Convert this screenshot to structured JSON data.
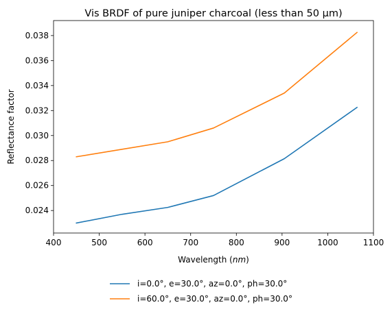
{
  "chart_data": {
    "type": "line",
    "title": "Vis BRDF of pure juniper charcoal (less than 50 µm)",
    "xlabel_text": "Wavelength (",
    "xlabel_unit": "nm",
    "xlabel_close": ")",
    "ylabel": "Reflectance factor",
    "xlim": [
      400,
      1100
    ],
    "ylim": [
      0.0222,
      0.0392
    ],
    "xticks": [
      400,
      500,
      600,
      700,
      800,
      900,
      1000,
      1100
    ],
    "yticks": [
      0.024,
      0.026,
      0.028,
      0.03,
      0.032,
      0.034,
      0.036,
      0.038
    ],
    "ytick_labels": [
      "0.024",
      "0.026",
      "0.028",
      "0.030",
      "0.032",
      "0.034",
      "0.036",
      "0.038"
    ],
    "legend_position": "below",
    "grid": false,
    "series": [
      {
        "name": "i=0.0°, e=30.0°, az=0.0°, ph=30.0°",
        "color": "#1f77b4",
        "x": [
          450,
          550,
          650,
          750,
          905,
          1064
        ],
        "y": [
          0.023,
          0.0237,
          0.02425,
          0.0252,
          0.02815,
          0.03225
        ]
      },
      {
        "name": "i=60.0°, e=30.0°, az=0.0°, ph=30.0°",
        "color": "#ff7f0e",
        "x": [
          450,
          550,
          650,
          750,
          905,
          1064
        ],
        "y": [
          0.0283,
          0.0289,
          0.0295,
          0.0306,
          0.0334,
          0.03825
        ]
      }
    ]
  }
}
